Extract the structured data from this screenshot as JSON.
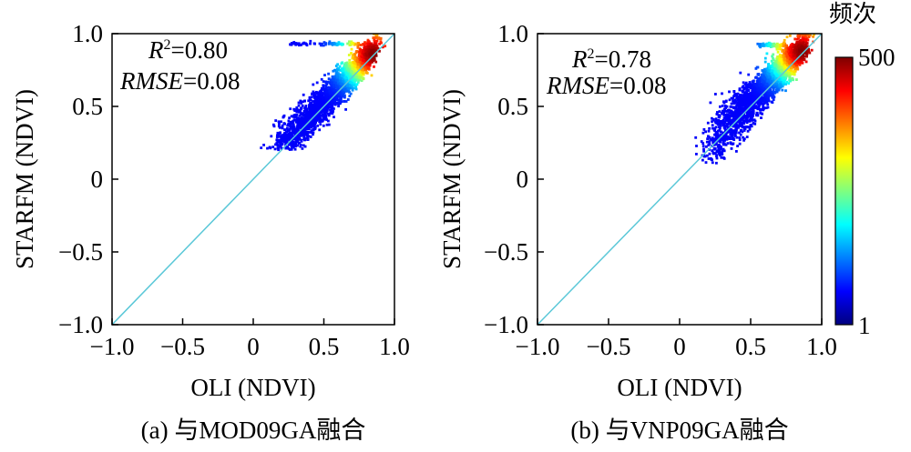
{
  "colorbar": {
    "title": "频次",
    "max_label": "500",
    "min_label": "1",
    "min": 1,
    "max": 500,
    "colormap": "jet",
    "colors": [
      "#00007f",
      "#0000ff",
      "#007fff",
      "#00ffff",
      "#7fff7f",
      "#ffff00",
      "#ff7f00",
      "#ff0000",
      "#7f0000"
    ]
  },
  "line_color": "#5bc8d8",
  "chart_data": [
    {
      "type": "scatter",
      "panel_label": "(a) 与MOD09GA融合",
      "xlabel": "OLI (NDVI)",
      "ylabel": "STARFM (NDVI)",
      "xlim": [
        -1.0,
        1.0
      ],
      "ylim": [
        -1.0,
        1.0
      ],
      "xticks": [
        "−1.0",
        "−0.5",
        "0",
        "0.5",
        "1.0"
      ],
      "yticks": [
        "−1.0",
        "−0.5",
        "0",
        "0.5",
        "1.0"
      ],
      "annotation": {
        "r2_symbol": "R",
        "r2_sup": "2",
        "r2_value": "=0.80",
        "rmse_symbol": "RMSE",
        "rmse_value": "=0.08"
      },
      "reference_line": [
        [
          -1.0,
          -1.0
        ],
        [
          1.0,
          1.0
        ]
      ],
      "density": {
        "center": [
          0.85,
          0.86
        ],
        "x_range": [
          0.05,
          0.95
        ],
        "y_range": [
          0.2,
          1.0
        ],
        "scatter_sd": 0.055,
        "streak": {
          "y": 0.93,
          "x_range": [
            0.25,
            0.8
          ]
        }
      }
    },
    {
      "type": "scatter",
      "panel_label": "(b) 与VNP09GA融合",
      "xlabel": "OLI (NDVI)",
      "ylabel": "STARFM (NDVI)",
      "xlim": [
        -1.0,
        1.0
      ],
      "ylim": [
        -1.0,
        1.0
      ],
      "xticks": [
        "−1.0",
        "−0.5",
        "0",
        "0.5",
        "1.0"
      ],
      "yticks": [
        "−1.0",
        "−0.5",
        "0",
        "0.5",
        "1.0"
      ],
      "annotation": {
        "r2_symbol": "R",
        "r2_sup": "2",
        "r2_value": "=0.78",
        "rmse_symbol": "RMSE",
        "rmse_value": "=0.08"
      },
      "reference_line": [
        [
          -1.0,
          -1.0
        ],
        [
          1.0,
          1.0
        ]
      ],
      "density": {
        "center": [
          0.86,
          0.88
        ],
        "x_range": [
          0.15,
          0.95
        ],
        "y_range": [
          0.1,
          1.0
        ],
        "scatter_sd": 0.06,
        "streak": {
          "y": 0.92,
          "x_range": [
            0.55,
            0.75
          ]
        }
      }
    }
  ]
}
